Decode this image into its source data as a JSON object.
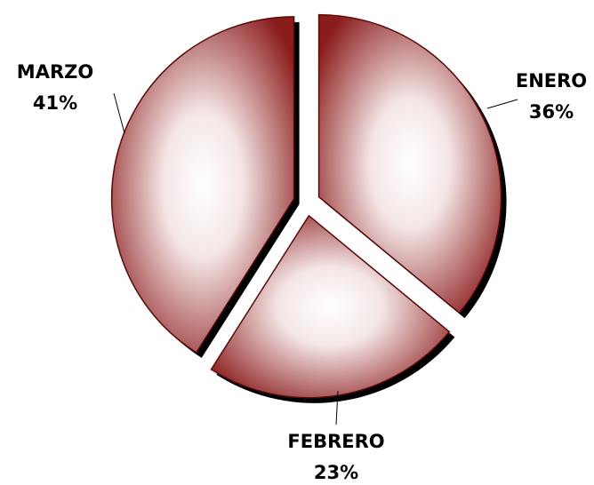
{
  "chart_data": {
    "type": "pie",
    "categories": [
      "ENERO",
      "FEBRERO",
      "MARZO"
    ],
    "values": [
      36,
      23,
      41
    ],
    "value_labels": [
      "36%",
      "23%",
      "41%"
    ],
    "color": "#8b1c1c"
  }
}
